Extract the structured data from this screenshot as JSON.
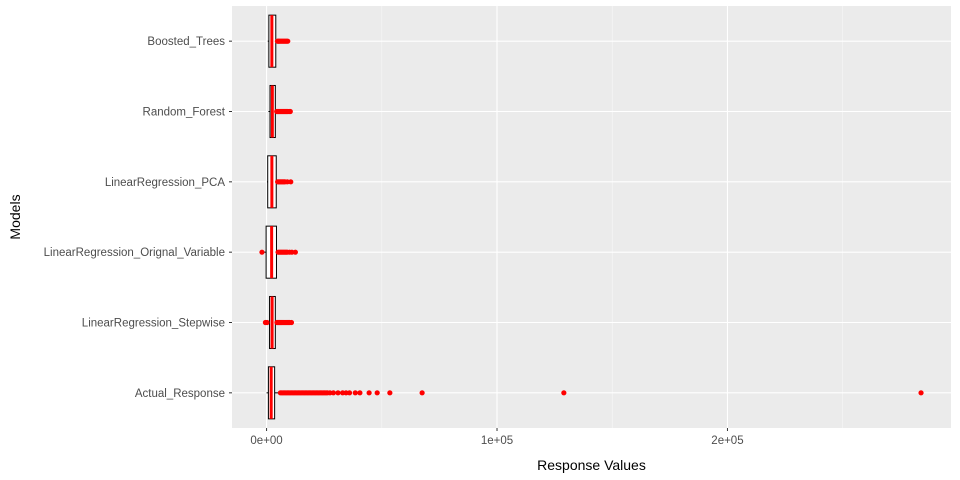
{
  "chart_data": {
    "type": "boxplot",
    "orientation": "horizontal",
    "xlabel": "Response Values",
    "ylabel": "Models",
    "xlim": [
      -15000,
      297000
    ],
    "x_ticks": [
      0,
      100000,
      200000
    ],
    "x_tick_labels": [
      "0e+00",
      "1e+05",
      "2e+05"
    ],
    "grid": true,
    "legend": "none",
    "colors": {
      "panel_background": "#ebebeb",
      "grid_major": "#ffffff",
      "box_outline": "#000000",
      "median": "#ff0000",
      "outlier": "#ff0000"
    },
    "categories": [
      "Boosted_Trees",
      "Random_Forest",
      "LinearRegression_PCA",
      "LinearRegression_Orignal_Variable",
      "LinearRegression_Stepwise",
      "Actual_Response"
    ],
    "series": [
      {
        "category": "Boosted_Trees",
        "q1": 1000,
        "median": 2300,
        "q3": 4000,
        "whisker_low": 500,
        "whisker_high": 4500,
        "outliers": [
          4700,
          5000,
          5300,
          5600,
          6000,
          6400,
          6800,
          7200,
          7600,
          8000,
          8400,
          8800,
          9200
        ]
      },
      {
        "category": "Random_Forest",
        "q1": 1500,
        "median": 2500,
        "q3": 3800,
        "whisker_low": 800,
        "whisker_high": 4200,
        "outliers": [
          4400,
          4800,
          5200,
          5600,
          6000,
          6400,
          6800,
          7200,
          7600,
          8000,
          8400,
          8800,
          9200,
          9800,
          10300
        ]
      },
      {
        "category": "LinearRegression_PCA",
        "q1": 500,
        "median": 2300,
        "q3": 4200,
        "whisker_low": 200,
        "whisker_high": 4600,
        "outliers": [
          4800,
          5200,
          5600,
          6000,
          6400,
          6800,
          7200,
          7600,
          8000,
          9000,
          10500
        ]
      },
      {
        "category": "LinearRegression_Orignal_Variable",
        "q1": -200,
        "median": 2200,
        "q3": 4300,
        "whisker_low": -1500,
        "whisker_high": 4800,
        "outliers": [
          -2000,
          5000,
          5500,
          6000,
          6500,
          7000,
          7500,
          8000,
          8500,
          9000,
          10000,
          11000,
          12500
        ]
      },
      {
        "category": "LinearRegression_Stepwise",
        "q1": 1300,
        "median": 2400,
        "q3": 3800,
        "whisker_low": 500,
        "whisker_high": 4300,
        "outliers": [
          -500,
          200,
          4500,
          4900,
          5300,
          5700,
          6100,
          6500,
          7000,
          7500,
          8000,
          8500,
          9000,
          9500,
          10000,
          10800
        ]
      },
      {
        "category": "Actual_Response",
        "q1": 800,
        "median": 2000,
        "q3": 3500,
        "whisker_low": 0,
        "whisker_high": 5500,
        "outliers": [
          6000,
          6600,
          7200,
          7800,
          8400,
          9000,
          9600,
          10200,
          10800,
          11400,
          12000,
          12600,
          13200,
          13800,
          14400,
          15000,
          15600,
          16200,
          16800,
          17400,
          18000,
          18600,
          19200,
          19800,
          20400,
          21000,
          21600,
          22200,
          22800,
          23400,
          24000,
          24600,
          25200,
          25800,
          26400,
          27500,
          29000,
          31000,
          33000,
          34500,
          36000,
          38500,
          40500,
          44500,
          48000,
          53500,
          67500,
          129000,
          284000
        ]
      }
    ]
  }
}
